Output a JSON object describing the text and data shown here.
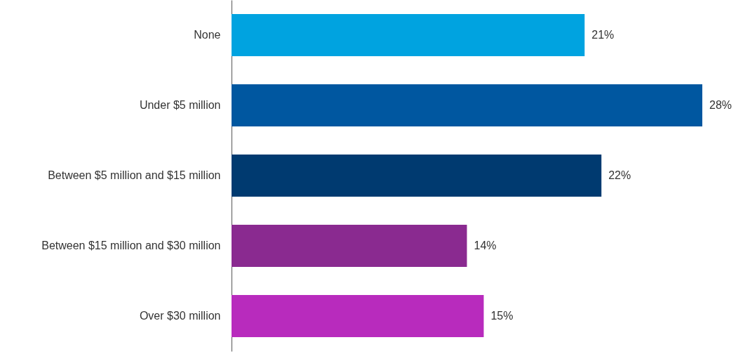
{
  "chart_data": {
    "type": "bar",
    "orientation": "horizontal",
    "categories": [
      "None",
      "Under $5 million",
      "Between $5 million and $15 million",
      "Between $15 million and $30 million",
      "Over $30 million"
    ],
    "values": [
      21,
      28,
      22,
      14,
      15
    ],
    "colors": [
      "#00a3e0",
      "#0057a0",
      "#003a70",
      "#8a2a90",
      "#b82bbd"
    ],
    "value_labels": [
      "21%",
      "28%",
      "22%",
      "14%",
      "15%"
    ],
    "grid": false
  }
}
